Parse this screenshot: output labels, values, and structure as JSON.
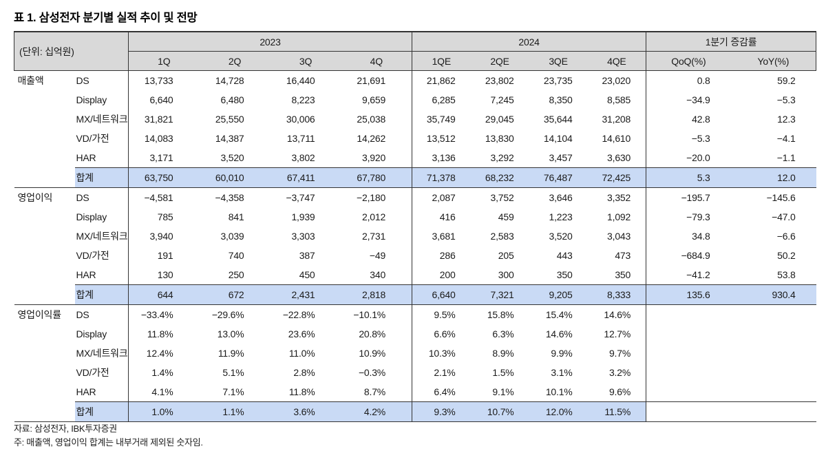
{
  "title": "표 1. 삼성전자 분기별 실적 추이 및 전망",
  "unit_label": "(단위: 십억원)",
  "header": {
    "groups": [
      {
        "label": "2023",
        "cols": [
          "1Q",
          "2Q",
          "3Q",
          "4Q"
        ]
      },
      {
        "label": "2024",
        "cols": [
          "1QE",
          "2QE",
          "3QE",
          "4QE"
        ]
      },
      {
        "label": "1분기 증감률",
        "cols": [
          "QoQ(%)",
          "YoY(%)"
        ]
      }
    ]
  },
  "sections": [
    {
      "label": "매출액",
      "rows": [
        {
          "label": "DS",
          "is_total": false,
          "values": [
            "13,733",
            "14,728",
            "16,440",
            "21,691",
            "21,862",
            "23,802",
            "23,735",
            "23,020",
            "0.8",
            "59.2"
          ]
        },
        {
          "label": "Display",
          "is_total": false,
          "values": [
            "6,640",
            "6,480",
            "8,223",
            "9,659",
            "6,285",
            "7,245",
            "8,350",
            "8,585",
            "−34.9",
            "−5.3"
          ]
        },
        {
          "label": "MX/네트워크",
          "is_total": false,
          "values": [
            "31,821",
            "25,550",
            "30,006",
            "25,038",
            "35,749",
            "29,045",
            "35,644",
            "31,208",
            "42.8",
            "12.3"
          ]
        },
        {
          "label": "VD/가전",
          "is_total": false,
          "values": [
            "14,083",
            "14,387",
            "13,711",
            "14,262",
            "13,512",
            "13,830",
            "14,104",
            "14,610",
            "−5.3",
            "−4.1"
          ]
        },
        {
          "label": "HAR",
          "is_total": false,
          "values": [
            "3,171",
            "3,520",
            "3,802",
            "3,920",
            "3,136",
            "3,292",
            "3,457",
            "3,630",
            "−20.0",
            "−1.1"
          ]
        },
        {
          "label": "합계",
          "is_total": true,
          "values": [
            "63,750",
            "60,010",
            "67,411",
            "67,780",
            "71,378",
            "68,232",
            "76,487",
            "72,425",
            "5.3",
            "12.0"
          ]
        }
      ]
    },
    {
      "label": "영업이익",
      "rows": [
        {
          "label": "DS",
          "is_total": false,
          "values": [
            "−4,581",
            "−4,358",
            "−3,747",
            "−2,180",
            "2,087",
            "3,752",
            "3,646",
            "3,352",
            "−195.7",
            "−145.6"
          ]
        },
        {
          "label": "Display",
          "is_total": false,
          "values": [
            "785",
            "841",
            "1,939",
            "2,012",
            "416",
            "459",
            "1,223",
            "1,092",
            "−79.3",
            "−47.0"
          ]
        },
        {
          "label": "MX/네트워크",
          "is_total": false,
          "values": [
            "3,940",
            "3,039",
            "3,303",
            "2,731",
            "3,681",
            "2,583",
            "3,520",
            "3,043",
            "34.8",
            "−6.6"
          ]
        },
        {
          "label": "VD/가전",
          "is_total": false,
          "values": [
            "191",
            "740",
            "387",
            "−49",
            "286",
            "205",
            "443",
            "473",
            "−684.9",
            "50.2"
          ]
        },
        {
          "label": "HAR",
          "is_total": false,
          "values": [
            "130",
            "250",
            "450",
            "340",
            "200",
            "300",
            "350",
            "350",
            "−41.2",
            "53.8"
          ]
        },
        {
          "label": "합계",
          "is_total": true,
          "values": [
            "644",
            "672",
            "2,431",
            "2,818",
            "6,640",
            "7,321",
            "9,205",
            "8,333",
            "135.6",
            "930.4"
          ]
        }
      ]
    },
    {
      "label": "영업이익률",
      "rows": [
        {
          "label": "DS",
          "is_total": false,
          "values": [
            "−33.4%",
            "−29.6%",
            "−22.8%",
            "−10.1%",
            "9.5%",
            "15.8%",
            "15.4%",
            "14.6%",
            "",
            ""
          ]
        },
        {
          "label": "Display",
          "is_total": false,
          "values": [
            "11.8%",
            "13.0%",
            "23.6%",
            "20.8%",
            "6.6%",
            "6.3%",
            "14.6%",
            "12.7%",
            "",
            ""
          ]
        },
        {
          "label": "MX/네트워크",
          "is_total": false,
          "values": [
            "12.4%",
            "11.9%",
            "11.0%",
            "10.9%",
            "10.3%",
            "8.9%",
            "9.9%",
            "9.7%",
            "",
            ""
          ]
        },
        {
          "label": "VD/가전",
          "is_total": false,
          "values": [
            "1.4%",
            "5.1%",
            "2.8%",
            "−0.3%",
            "2.1%",
            "1.5%",
            "3.1%",
            "3.2%",
            "",
            ""
          ]
        },
        {
          "label": "HAR",
          "is_total": false,
          "values": [
            "4.1%",
            "7.1%",
            "11.8%",
            "8.7%",
            "6.4%",
            "9.1%",
            "10.1%",
            "9.6%",
            "",
            ""
          ]
        },
        {
          "label": "합계",
          "is_total": true,
          "values": [
            "1.0%",
            "1.1%",
            "3.6%",
            "4.2%",
            "9.3%",
            "10.7%",
            "12.0%",
            "11.5%",
            "",
            ""
          ]
        }
      ]
    }
  ],
  "footnotes": [
    "자료: 삼성전자, IBK투자증권",
    "주: 매출액, 영업이익 합계는 내부거래 제외된 숫자임."
  ],
  "colors": {
    "header_bg": "#d9d9d9",
    "highlight_bg": "#c9daf5",
    "border": "#333333",
    "text": "#111111"
  }
}
